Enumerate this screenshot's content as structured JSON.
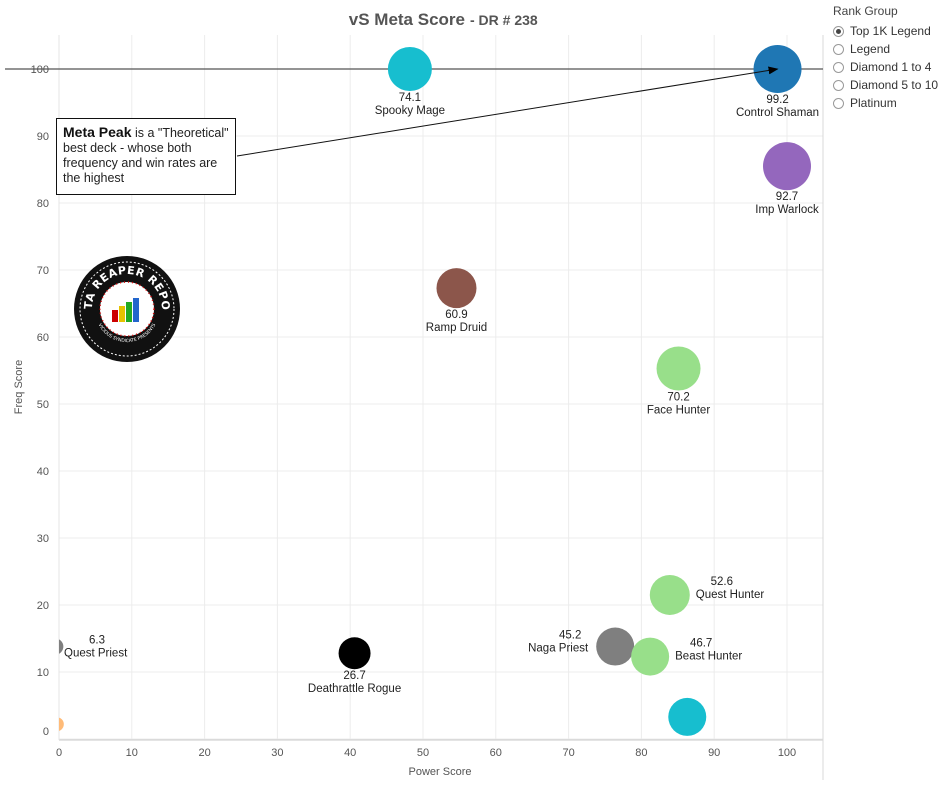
{
  "title": {
    "main": "vS Meta Score",
    "sub": "- DR # 238"
  },
  "legend": {
    "title": "Rank Group",
    "items": [
      {
        "label": "Top 1K Legend",
        "selected": true
      },
      {
        "label": "Legend",
        "selected": false
      },
      {
        "label": "Diamond 1 to 4",
        "selected": false
      },
      {
        "label": "Diamond 5 to 10",
        "selected": false
      },
      {
        "label": "Platinum",
        "selected": false
      }
    ]
  },
  "annotation": {
    "bold": "Meta Peak",
    "text": " is a \"Theoretical\" best deck - whose both frequency and win rates are the highest"
  },
  "logo": {
    "text": "DATA REAPER REPORT",
    "subtext": "VICIOUS SYNDICATE PRESENTS"
  },
  "chart_data": {
    "type": "scatter",
    "xlabel": "Power Score",
    "ylabel": "Freq Score",
    "xlim": [
      0,
      105
    ],
    "ylim": [
      -1,
      105
    ],
    "xticks": [
      0,
      10,
      20,
      30,
      40,
      50,
      60,
      70,
      80,
      90,
      100
    ],
    "yticks": [
      0,
      10,
      20,
      30,
      40,
      50,
      60,
      70,
      80,
      90,
      100
    ],
    "reference_line": {
      "y": 100
    },
    "arrow": {
      "from": [
        24,
        87.5
      ],
      "to": [
        98.7,
        100
      ]
    },
    "points": [
      {
        "name": "Spooky Mage",
        "score": "74.1",
        "x": 48.2,
        "y": 100,
        "color": "#17becf",
        "r": 22,
        "label_pos": "below"
      },
      {
        "name": "Control Shaman",
        "score": "99.2",
        "x": 98.7,
        "y": 100,
        "color": "#1f77b4",
        "r": 24,
        "label_pos": "below"
      },
      {
        "name": "Imp Warlock",
        "score": "92.7",
        "x": 100,
        "y": 85.5,
        "color": "#9467bd",
        "r": 24,
        "label_pos": "below"
      },
      {
        "name": "Ramp Druid",
        "score": "60.9",
        "x": 54.6,
        "y": 67.3,
        "color": "#8c564b",
        "r": 20,
        "label_pos": "below"
      },
      {
        "name": "Face Hunter",
        "score": "70.2",
        "x": 85.1,
        "y": 55.3,
        "color": "#98df8a",
        "r": 22,
        "label_pos": "below"
      },
      {
        "name": "Quest Hunter",
        "score": "52.6",
        "x": 83.9,
        "y": 21.5,
        "color": "#98df8a",
        "r": 20,
        "label_pos": "right"
      },
      {
        "name": "Naga Priest",
        "score": "45.2",
        "x": 76.4,
        "y": 13.8,
        "color": "#7f7f7f",
        "r": 19,
        "label_pos": "left"
      },
      {
        "name": "Beast Hunter",
        "score": "46.7",
        "x": 81.2,
        "y": 12.3,
        "color": "#98df8a",
        "r": 19,
        "label_pos": "right"
      },
      {
        "name": "Deathrattle Rogue",
        "score": "26.7",
        "x": 40.6,
        "y": 12.8,
        "color": "#000000",
        "r": 16,
        "label_pos": "below"
      },
      {
        "name": "Quest Priest",
        "score": "6.3",
        "x": -0.5,
        "y": 13.8,
        "color": "#7f7f7f",
        "r": 8,
        "label_pos": "right"
      },
      {
        "name": "",
        "score": "",
        "x": 86.3,
        "y": 3.3,
        "color": "#17becf",
        "r": 19,
        "label_pos": "none"
      },
      {
        "name": "",
        "score": "",
        "x": -0.3,
        "y": 2.2,
        "color": "#ffbb78",
        "r": 7,
        "label_pos": "none"
      }
    ]
  }
}
